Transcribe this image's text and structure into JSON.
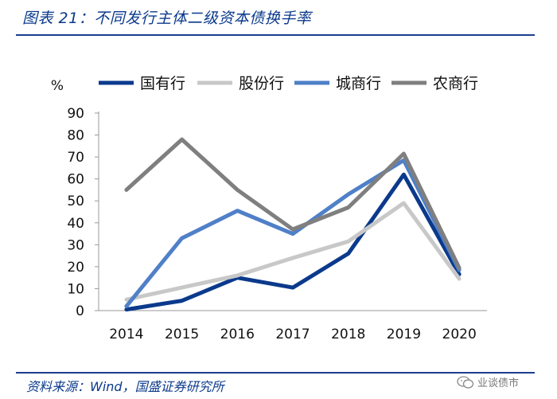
{
  "figure": {
    "title": "图表 21：不同发行主体二级资本债换手率",
    "source": "资料来源：Wind，国盛证券研究所",
    "watermark": "业谈债市"
  },
  "chart_data": {
    "type": "line",
    "title": "不同发行主体二级资本债换手率",
    "ylabel": "%",
    "xlabel": "",
    "ylim": [
      0,
      90
    ],
    "yticks": [
      0,
      10,
      20,
      30,
      40,
      50,
      60,
      70,
      80,
      90
    ],
    "categories": [
      "2014",
      "2015",
      "2016",
      "2017",
      "2018",
      "2019",
      "2020"
    ],
    "legend_position": "top",
    "grid": false,
    "series": [
      {
        "name": "国有行",
        "color": "#0b3a8c",
        "values": [
          0.5,
          4.5,
          15,
          10.5,
          26,
          62,
          16.5
        ]
      },
      {
        "name": "股份行",
        "color": "#c8c8c8",
        "values": [
          5,
          10.5,
          16,
          24,
          31.5,
          49,
          14.5
        ]
      },
      {
        "name": "城商行",
        "color": "#4f80c8",
        "values": [
          2,
          33,
          45.5,
          35,
          53,
          68.5,
          18.5
        ]
      },
      {
        "name": "农商行",
        "color": "#7f7f7f",
        "values": [
          55,
          78,
          55,
          37,
          47,
          71.5,
          19.5
        ]
      }
    ]
  }
}
